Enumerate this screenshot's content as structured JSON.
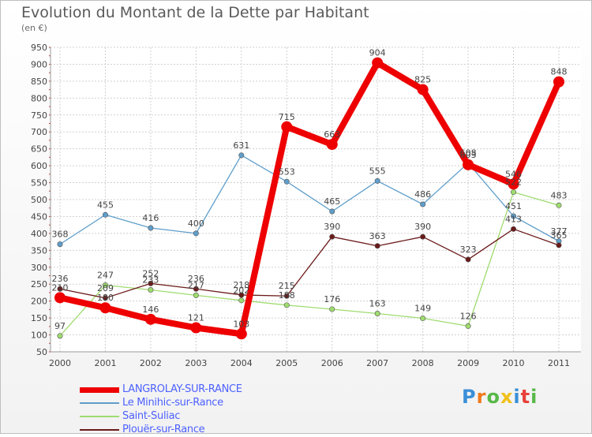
{
  "chart_data": {
    "type": "line",
    "title": "Evolution du Montant de la Dette par Habitant",
    "subtitle": "(en €)",
    "x": [
      "2000",
      "2001",
      "2002",
      "2003",
      "2004",
      "2005",
      "2006",
      "2007",
      "2008",
      "2009",
      "2010",
      "2011"
    ],
    "ylim": [
      50,
      950
    ],
    "yticks": [
      50,
      100,
      150,
      200,
      250,
      300,
      350,
      400,
      450,
      500,
      550,
      600,
      650,
      700,
      750,
      800,
      850,
      900,
      950
    ],
    "grid": true,
    "legend_position": "bottom-left",
    "series": [
      {
        "name": "LANGROLAY-SUR-RANCE",
        "color": "#ee0000",
        "values": [
          210,
          180,
          146,
          121,
          103,
          715,
          663,
          904,
          825,
          603,
          546,
          848
        ]
      },
      {
        "name": "Le Minihic-sur-Rance",
        "color": "#5f9ecb",
        "values": [
          368,
          455,
          416,
          400,
          631,
          553,
          465,
          555,
          486,
          608,
          451,
          377
        ]
      },
      {
        "name": "Saint-Suliac",
        "color": "#9fdc6f",
        "values": [
          97,
          247,
          233,
          217,
          202,
          188,
          176,
          163,
          149,
          126,
          522,
          483
        ]
      },
      {
        "name": "Plouër-sur-Rance",
        "color": "#6b1a1a",
        "values": [
          236,
          209,
          252,
          236,
          218,
          215,
          390,
          363,
          390,
          323,
          413,
          365
        ]
      }
    ]
  },
  "branding": {
    "logo_letters": [
      "P",
      "r",
      "o",
      "x",
      "i",
      "t",
      "i"
    ],
    "logo_colors": [
      "#3a8fd8",
      "#f07a1a",
      "#58b848",
      "#f0c01a",
      "#3a8fd8",
      "#e8403a",
      "#58b848"
    ]
  }
}
